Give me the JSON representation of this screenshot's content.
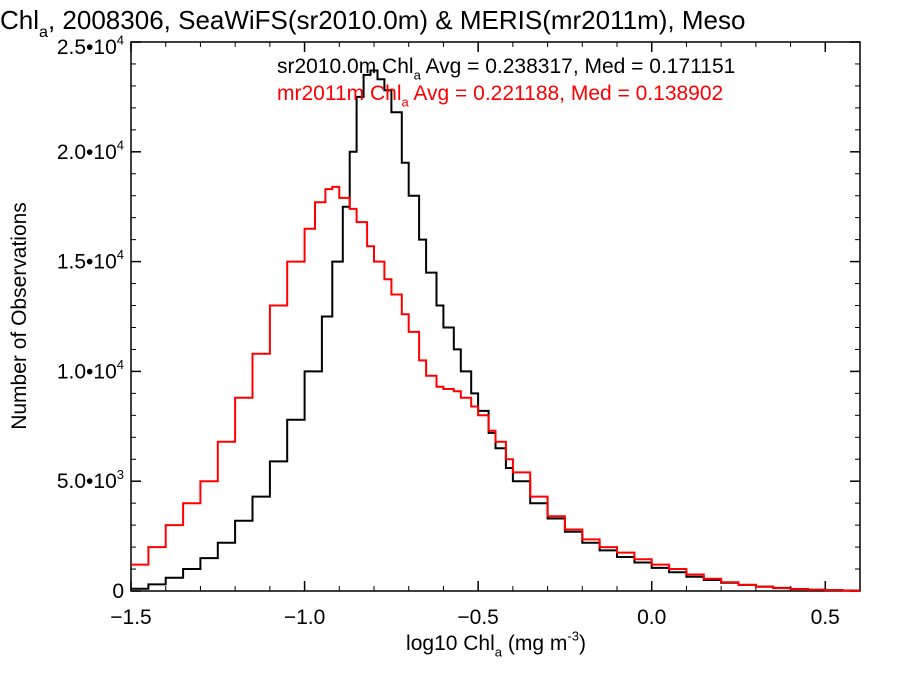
{
  "colors": {
    "black_series": "#000000",
    "red_series": "#ff0000",
    "axis": "#000000",
    "background": "#ffffff"
  },
  "chart_data": {
    "type": "line",
    "title": "Chl_a, 2008306, SeaWiFS(sr2010.0m) & MERIS(mr2011m), Meso",
    "xlabel": "log10 Chl_a (mg m^-3)",
    "ylabel": "Number of Observations",
    "xlim": [
      -1.5,
      0.6
    ],
    "ylim": [
      0,
      25000
    ],
    "x_ticks": [
      -1.5,
      -1.0,
      -0.5,
      0.0,
      0.5
    ],
    "x_tick_labels": [
      "−1.5",
      "−1.0",
      "−0.5",
      "0.0",
      "0.5"
    ],
    "y_ticks": [
      0,
      5000,
      10000,
      15000,
      20000,
      25000
    ],
    "y_tick_labels": [
      "0",
      "5.0•10^3",
      "1.0•10^4",
      "1.5•10^4",
      "2.0•10^4",
      "2.5•10^4"
    ],
    "grid": false,
    "legend": [
      {
        "text": "sr2010.0m Chl_a Avg = 0.238317, Med = 0.171151",
        "color": "#000000"
      },
      {
        "text": "mr2011m Chl_a Avg = 0.221188, Med = 0.138902",
        "color": "#ff0000"
      }
    ],
    "series": [
      {
        "name": "sr2010.0m",
        "color": "#000000",
        "x": [
          -1.5,
          -1.45,
          -1.4,
          -1.35,
          -1.3,
          -1.25,
          -1.2,
          -1.15,
          -1.1,
          -1.05,
          -1.0,
          -0.95,
          -0.92,
          -0.89,
          -0.87,
          -0.85,
          -0.83,
          -0.81,
          -0.79,
          -0.77,
          -0.75,
          -0.72,
          -0.7,
          -0.67,
          -0.65,
          -0.62,
          -0.6,
          -0.57,
          -0.55,
          -0.52,
          -0.5,
          -0.47,
          -0.45,
          -0.42,
          -0.4,
          -0.35,
          -0.3,
          -0.25,
          -0.2,
          -0.15,
          -0.1,
          -0.05,
          0.0,
          0.05,
          0.1,
          0.15,
          0.2,
          0.25,
          0.3,
          0.35,
          0.4,
          0.45,
          0.5,
          0.55,
          0.6
        ],
        "y": [
          100,
          300,
          600,
          1000,
          1500,
          2200,
          3200,
          4300,
          5900,
          7800,
          10000,
          12500,
          15000,
          17500,
          20000,
          22500,
          23500,
          23700,
          23300,
          22800,
          21800,
          19500,
          18000,
          16000,
          14500,
          13000,
          12000,
          11000,
          10000,
          9000,
          8200,
          7200,
          6500,
          5600,
          5000,
          4000,
          3300,
          2700,
          2200,
          1850,
          1550,
          1300,
          1050,
          850,
          650,
          500,
          380,
          280,
          200,
          140,
          90,
          60,
          40,
          25,
          15
        ]
      },
      {
        "name": "mr2011m",
        "color": "#ff0000",
        "x": [
          -1.5,
          -1.45,
          -1.4,
          -1.35,
          -1.3,
          -1.25,
          -1.2,
          -1.15,
          -1.1,
          -1.05,
          -1.0,
          -0.97,
          -0.94,
          -0.92,
          -0.9,
          -0.87,
          -0.85,
          -0.82,
          -0.8,
          -0.77,
          -0.75,
          -0.72,
          -0.7,
          -0.67,
          -0.65,
          -0.62,
          -0.6,
          -0.57,
          -0.55,
          -0.52,
          -0.5,
          -0.47,
          -0.45,
          -0.42,
          -0.4,
          -0.35,
          -0.3,
          -0.25,
          -0.2,
          -0.15,
          -0.1,
          -0.05,
          0.0,
          0.05,
          0.1,
          0.15,
          0.2,
          0.25,
          0.3,
          0.35,
          0.4,
          0.45,
          0.5,
          0.55,
          0.6
        ],
        "y": [
          1200,
          2000,
          3000,
          4000,
          5000,
          6800,
          8800,
          10800,
          13000,
          15000,
          16500,
          17700,
          18300,
          18400,
          17900,
          17400,
          16800,
          15700,
          15000,
          14200,
          13500,
          12600,
          11800,
          10500,
          9800,
          9300,
          9200,
          9100,
          8800,
          8400,
          8000,
          7300,
          6800,
          6000,
          5400,
          4300,
          3400,
          2800,
          2350,
          2000,
          1750,
          1450,
          1200,
          1000,
          750,
          560,
          400,
          280,
          190,
          130,
          85,
          55,
          35,
          20,
          10
        ]
      }
    ]
  }
}
